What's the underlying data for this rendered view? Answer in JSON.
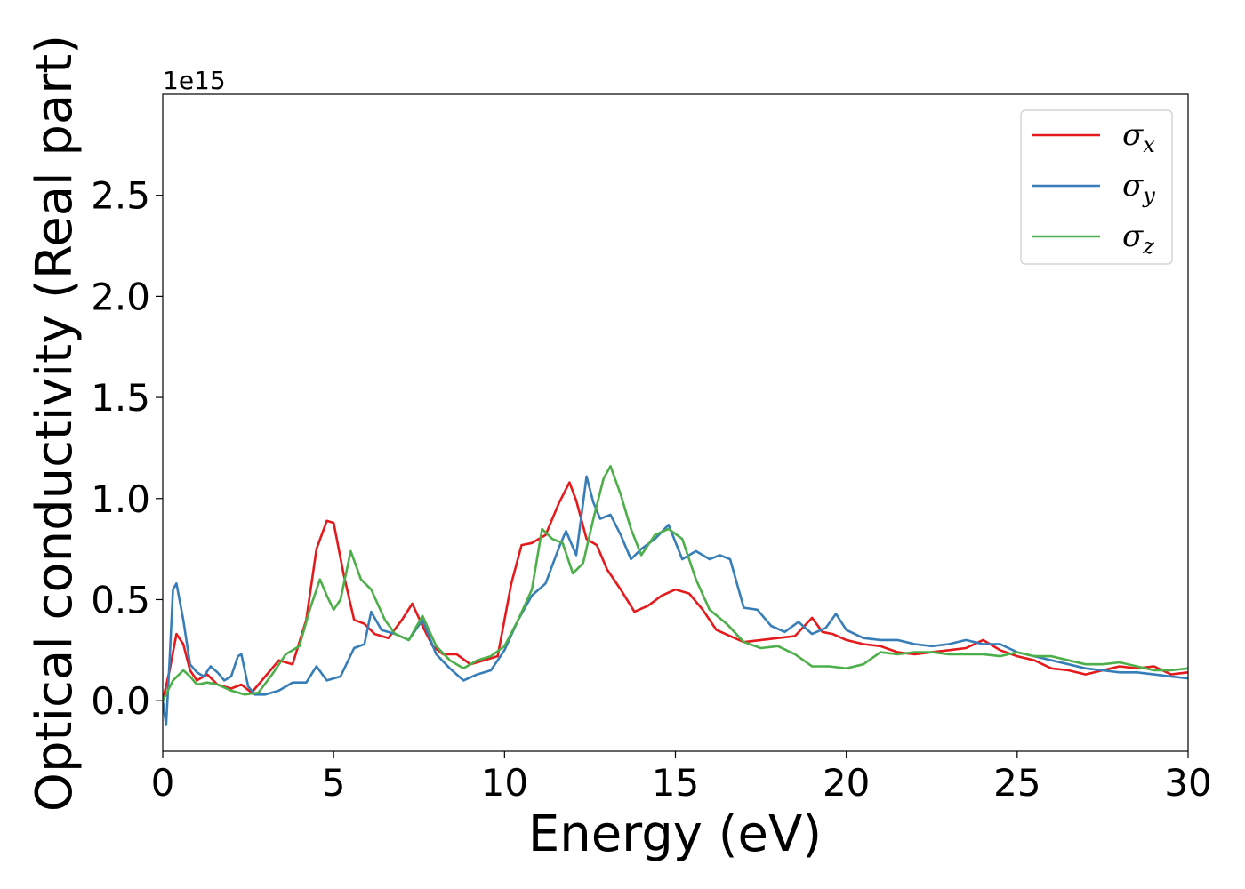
{
  "chart_data": {
    "type": "line",
    "title": "",
    "xlabel": "Energy (eV)",
    "ylabel": "Optical conductivity (Real part)",
    "y_offset_text": "1e15",
    "xlim": [
      0,
      30
    ],
    "ylim": [
      -0.25,
      3.0
    ],
    "x_ticks": [
      0,
      5,
      10,
      15,
      20,
      25,
      30
    ],
    "x_tick_labels": [
      "0",
      "5",
      "10",
      "15",
      "20",
      "25",
      "30"
    ],
    "y_ticks": [
      0.0,
      0.5,
      1.0,
      1.5,
      2.0,
      2.5
    ],
    "y_tick_labels": [
      "0.0",
      "0.5",
      "1.0",
      "1.5",
      "2.0",
      "2.5"
    ],
    "grid": false,
    "legend_position": "top-right",
    "series": [
      {
        "name": "σx",
        "symbol": "σ",
        "subscript": "x",
        "color": "#e41a1c",
        "x": [
          0,
          0.2,
          0.4,
          0.6,
          0.8,
          1.0,
          1.3,
          1.6,
          2.0,
          2.3,
          2.6,
          3.0,
          3.4,
          3.8,
          4.2,
          4.5,
          4.8,
          5.0,
          5.3,
          5.6,
          5.9,
          6.2,
          6.6,
          7.0,
          7.3,
          7.6,
          7.9,
          8.2,
          8.6,
          9.0,
          9.4,
          9.8,
          10.2,
          10.5,
          10.8,
          11.2,
          11.6,
          11.9,
          12.1,
          12.4,
          12.7,
          13.0,
          13.4,
          13.8,
          14.2,
          14.6,
          15.0,
          15.4,
          15.8,
          16.2,
          16.6,
          17.0,
          17.5,
          18.0,
          18.5,
          19.0,
          19.3,
          19.6,
          20.0,
          20.5,
          21.0,
          21.5,
          22.0,
          22.5,
          23.0,
          23.5,
          24.0,
          24.5,
          25.0,
          25.5,
          26.0,
          26.5,
          27.0,
          27.5,
          28.0,
          28.5,
          29.0,
          29.5,
          30.0
        ],
        "y": [
          0.0,
          0.15,
          0.33,
          0.28,
          0.15,
          0.1,
          0.13,
          0.08,
          0.06,
          0.08,
          0.04,
          0.12,
          0.2,
          0.18,
          0.4,
          0.75,
          0.89,
          0.88,
          0.62,
          0.4,
          0.38,
          0.33,
          0.31,
          0.4,
          0.48,
          0.37,
          0.27,
          0.23,
          0.23,
          0.18,
          0.2,
          0.22,
          0.58,
          0.77,
          0.78,
          0.82,
          0.98,
          1.08,
          0.99,
          0.8,
          0.77,
          0.65,
          0.55,
          0.44,
          0.47,
          0.52,
          0.55,
          0.53,
          0.45,
          0.35,
          0.32,
          0.29,
          0.3,
          0.31,
          0.32,
          0.41,
          0.34,
          0.33,
          0.3,
          0.28,
          0.27,
          0.24,
          0.23,
          0.24,
          0.25,
          0.26,
          0.3,
          0.25,
          0.22,
          0.2,
          0.16,
          0.15,
          0.13,
          0.15,
          0.17,
          0.16,
          0.17,
          0.13,
          0.14
        ]
      },
      {
        "name": "σy",
        "symbol": "σ",
        "subscript": "y",
        "color": "#377eb8",
        "x": [
          0,
          0.1,
          0.2,
          0.3,
          0.4,
          0.6,
          0.8,
          1.0,
          1.2,
          1.4,
          1.6,
          1.8,
          2.0,
          2.2,
          2.3,
          2.5,
          2.7,
          3.0,
          3.4,
          3.8,
          4.2,
          4.5,
          4.8,
          5.2,
          5.6,
          5.9,
          6.1,
          6.4,
          6.8,
          7.2,
          7.6,
          8.0,
          8.4,
          8.8,
          9.2,
          9.6,
          10.0,
          10.4,
          10.8,
          11.2,
          11.6,
          11.8,
          12.1,
          12.4,
          12.6,
          12.8,
          13.1,
          13.4,
          13.7,
          14.0,
          14.4,
          14.8,
          15.2,
          15.6,
          16.0,
          16.3,
          16.6,
          17.0,
          17.4,
          17.8,
          18.2,
          18.6,
          19.0,
          19.4,
          19.7,
          20.0,
          20.5,
          21.0,
          21.5,
          22.0,
          22.5,
          23.0,
          23.5,
          24.0,
          24.5,
          25.0,
          25.5,
          26.0,
          26.5,
          27.0,
          27.5,
          28.0,
          28.5,
          29.0,
          29.5,
          30.0
        ],
        "y": [
          0.0,
          -0.12,
          0.2,
          0.55,
          0.58,
          0.4,
          0.18,
          0.14,
          0.12,
          0.17,
          0.14,
          0.1,
          0.12,
          0.22,
          0.23,
          0.07,
          0.03,
          0.03,
          0.05,
          0.09,
          0.09,
          0.17,
          0.1,
          0.12,
          0.26,
          0.28,
          0.44,
          0.35,
          0.33,
          0.3,
          0.4,
          0.23,
          0.16,
          0.1,
          0.13,
          0.15,
          0.25,
          0.4,
          0.52,
          0.58,
          0.76,
          0.84,
          0.72,
          1.11,
          0.98,
          0.9,
          0.92,
          0.82,
          0.7,
          0.75,
          0.8,
          0.87,
          0.7,
          0.74,
          0.7,
          0.72,
          0.7,
          0.46,
          0.45,
          0.37,
          0.34,
          0.39,
          0.33,
          0.36,
          0.43,
          0.35,
          0.31,
          0.3,
          0.3,
          0.28,
          0.27,
          0.28,
          0.3,
          0.28,
          0.28,
          0.24,
          0.22,
          0.2,
          0.18,
          0.16,
          0.15,
          0.14,
          0.14,
          0.13,
          0.12,
          0.11
        ]
      },
      {
        "name": "σz",
        "symbol": "σ",
        "subscript": "z",
        "color": "#4daf4a",
        "x": [
          0,
          0.3,
          0.6,
          0.8,
          1.0,
          1.3,
          1.6,
          2.0,
          2.4,
          2.8,
          3.2,
          3.6,
          4.0,
          4.3,
          4.6,
          4.8,
          5.0,
          5.2,
          5.5,
          5.8,
          6.1,
          6.5,
          6.8,
          7.2,
          7.6,
          8.0,
          8.4,
          8.8,
          9.2,
          9.6,
          10.0,
          10.4,
          10.8,
          11.1,
          11.4,
          11.7,
          12.0,
          12.3,
          12.6,
          12.9,
          13.1,
          13.4,
          13.7,
          14.0,
          14.4,
          14.8,
          15.2,
          15.6,
          16.0,
          16.5,
          17.0,
          17.5,
          18.0,
          18.5,
          19.0,
          19.5,
          20.0,
          20.5,
          21.0,
          21.5,
          22.0,
          22.5,
          23.0,
          23.5,
          24.0,
          24.5,
          25.0,
          25.5,
          26.0,
          26.5,
          27.0,
          27.5,
          28.0,
          28.5,
          29.0,
          29.5,
          30.0
        ],
        "y": [
          0.0,
          0.1,
          0.15,
          0.12,
          0.08,
          0.09,
          0.08,
          0.05,
          0.03,
          0.04,
          0.13,
          0.23,
          0.27,
          0.45,
          0.6,
          0.52,
          0.45,
          0.5,
          0.74,
          0.6,
          0.55,
          0.4,
          0.33,
          0.3,
          0.42,
          0.27,
          0.2,
          0.16,
          0.2,
          0.22,
          0.27,
          0.4,
          0.55,
          0.85,
          0.8,
          0.78,
          0.63,
          0.68,
          0.9,
          1.1,
          1.16,
          1.02,
          0.85,
          0.72,
          0.82,
          0.85,
          0.8,
          0.6,
          0.45,
          0.38,
          0.29,
          0.26,
          0.27,
          0.23,
          0.17,
          0.17,
          0.16,
          0.18,
          0.24,
          0.23,
          0.24,
          0.24,
          0.23,
          0.23,
          0.23,
          0.22,
          0.24,
          0.22,
          0.22,
          0.2,
          0.18,
          0.18,
          0.19,
          0.17,
          0.15,
          0.15,
          0.16
        ]
      }
    ]
  }
}
